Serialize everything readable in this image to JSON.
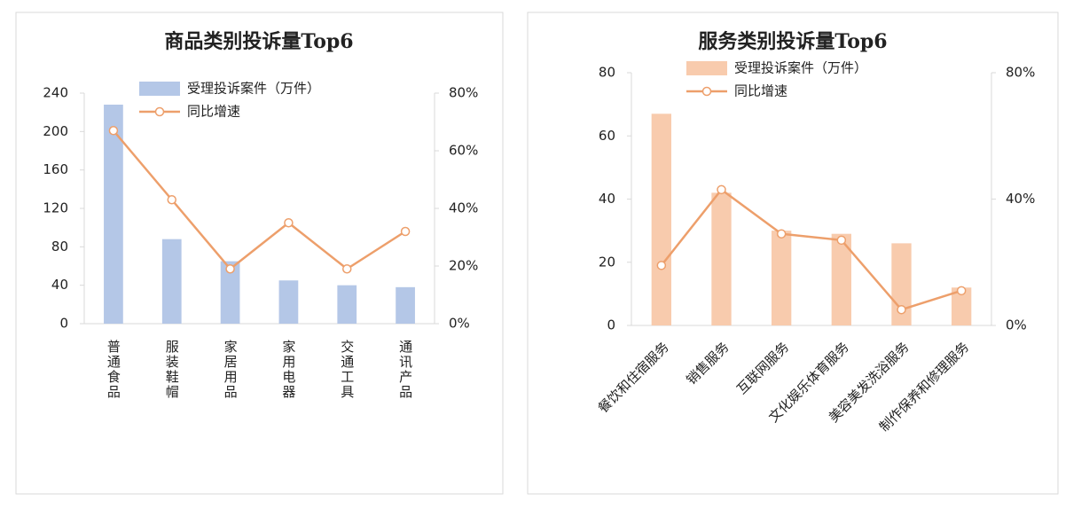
{
  "chart_data": [
    {
      "type": "combo",
      "title": "商品类别投诉量Top6",
      "categories": [
        "普通食品",
        "服装鞋帽",
        "家居用品",
        "家用电器",
        "交通工具",
        "通讯产品"
      ],
      "series": [
        {
          "name": "受理投诉案件（万件）",
          "type": "bar",
          "color": "#b4c7e7",
          "values": [
            228,
            88,
            65,
            45,
            40,
            38
          ]
        },
        {
          "name": "同比增速",
          "type": "line",
          "axis": "y2",
          "color": "#ed9f6b",
          "values": [
            67,
            43,
            19,
            35,
            19,
            32
          ]
        }
      ],
      "ylim": [
        0,
        240
      ],
      "yticks": [
        0,
        40,
        80,
        120,
        160,
        200,
        240
      ],
      "y2lim": [
        0,
        80
      ],
      "y2ticks": [
        {
          "value": 0,
          "label": "0%"
        },
        {
          "value": 20,
          "label": "20%"
        },
        {
          "value": 40,
          "label": "40%"
        },
        {
          "value": 60,
          "label": "60%"
        },
        {
          "value": 80,
          "label": "80%"
        }
      ],
      "legend": "top",
      "x_label_orientation": "vertical"
    },
    {
      "type": "combo",
      "title": "服务类别投诉量Top6",
      "categories": [
        "餐饮和住宿服务",
        "销售服务",
        "互联网服务",
        "文化娱乐体育服务",
        "美容美发洗浴服务",
        "制作保养和修理服务"
      ],
      "series": [
        {
          "name": "受理投诉案件（万件）",
          "type": "bar",
          "color": "#f8cbad",
          "values": [
            67,
            42,
            30,
            29,
            26,
            12
          ]
        },
        {
          "name": "同比增速",
          "type": "line",
          "axis": "y2",
          "color": "#ed9f6b",
          "values": [
            19,
            43,
            29,
            27,
            5,
            11
          ]
        }
      ],
      "ylim": [
        0,
        80
      ],
      "yticks": [
        0,
        20,
        40,
        60,
        80
      ],
      "y2lim": [
        0,
        80
      ],
      "y2ticks": [
        {
          "value": 0,
          "label": "0%"
        },
        {
          "value": 40,
          "label": "40%"
        },
        {
          "value": 80,
          "label": "80%"
        }
      ],
      "legend": "top",
      "x_label_orientation": "rotated"
    }
  ]
}
